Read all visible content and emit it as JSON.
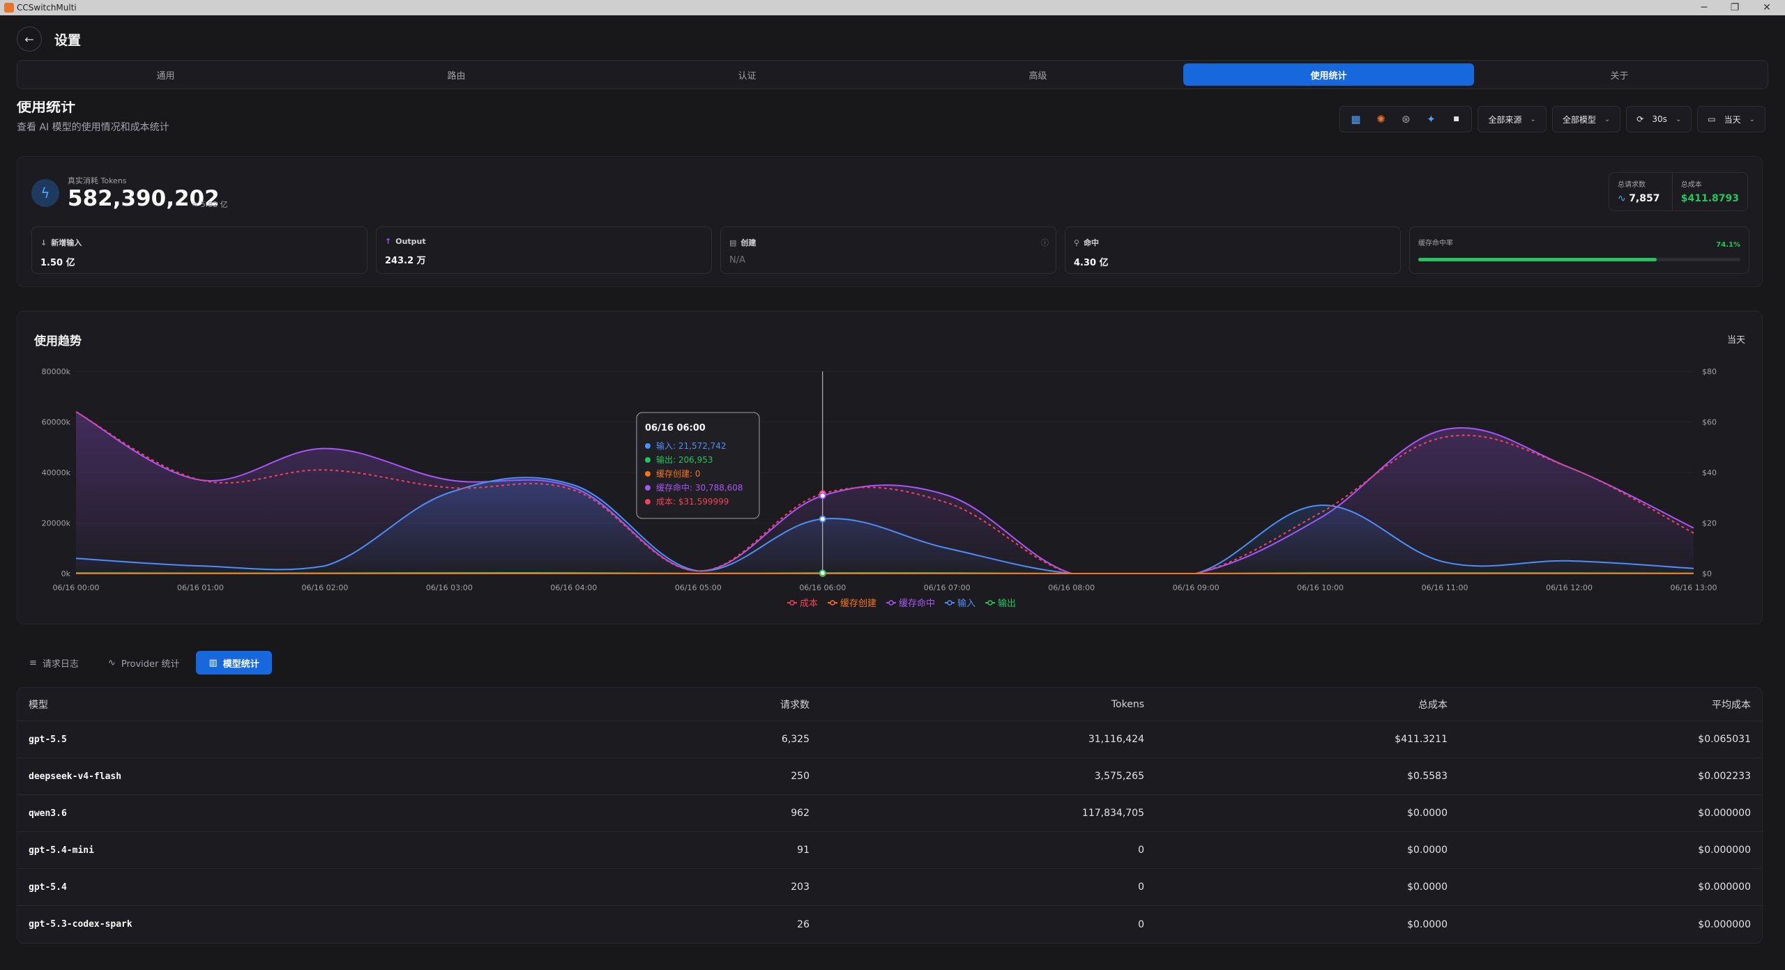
{
  "window": {
    "title": "CCSwitchMulti",
    "minimize": "─",
    "maximize": "❐",
    "close": "✕"
  },
  "header": {
    "back_icon": "←",
    "title": "设置"
  },
  "tabs": [
    {
      "label": "通用"
    },
    {
      "label": "路由"
    },
    {
      "label": "认证"
    },
    {
      "label": "高级"
    },
    {
      "label": "使用统计",
      "active": true
    },
    {
      "label": "关于"
    }
  ],
  "section": {
    "title": "使用统计",
    "subtitle": "查看 AI 模型的使用情况和成本统计"
  },
  "toolbar": {
    "icons": [
      {
        "name": "grid-icon",
        "glyph": "▦",
        "color": "#4da3ff"
      },
      {
        "name": "claude-icon",
        "glyph": "✺",
        "color": "#e8742c"
      },
      {
        "name": "openai-icon",
        "glyph": "⊛",
        "color": "#a1a1aa"
      },
      {
        "name": "gemini-icon",
        "glyph": "✦",
        "color": "#4da3ff"
      },
      {
        "name": "square-icon",
        "glyph": "■",
        "color": "#e4e4e7"
      }
    ],
    "source": "全部来源",
    "model": "全部模型",
    "refresh": "30s",
    "range": "当天"
  },
  "summary": {
    "tokens_label": "真实消耗 Tokens",
    "tokens_value": "582,390,202",
    "tokens_approx": "≈ 5.82 亿",
    "requests_label": "总请求数",
    "requests_value": "7,857",
    "cost_label": "总成本",
    "cost_value": "$411.8793",
    "metrics": [
      {
        "label": "新增输入",
        "value": "1.50 亿",
        "icon": "↓"
      },
      {
        "label": "Output",
        "value": "243.2 万",
        "icon": "↑"
      },
      {
        "label": "创建",
        "value": "N/A",
        "icon": "▤",
        "info": "ⓘ"
      },
      {
        "label": "命中",
        "value": "4.30 亿",
        "icon": "⚲"
      }
    ],
    "cache": {
      "label": "缓存命中率",
      "value": "74.1%",
      "ratio": 0.741
    }
  },
  "trend": {
    "title": "使用趋势",
    "range": "当天",
    "tooltip": {
      "title": "06/16 06:00",
      "rows": [
        {
          "label": "输入: ",
          "value": "21,572,742",
          "color": "#4d8ef7"
        },
        {
          "label": "输出: ",
          "value": "206,953",
          "color": "#22c55e"
        },
        {
          "label": "缓存创建: ",
          "value": "0",
          "color": "#f97316"
        },
        {
          "label": "缓存命中: ",
          "value": "30,788,608",
          "color": "#a855f7"
        },
        {
          "label": "成本: ",
          "value": "$31.599999",
          "color": "#f43f5e"
        }
      ]
    }
  },
  "chart_data": {
    "type": "area",
    "x": [
      "06/16 00:00",
      "06/16 01:00",
      "06/16 02:00",
      "06/16 03:00",
      "06/16 04:00",
      "06/16 05:00",
      "06/16 06:00",
      "06/16 07:00",
      "06/16 08:00",
      "06/16 09:00",
      "06/16 10:00",
      "06/16 11:00",
      "06/16 12:00",
      "06/16 13:00"
    ],
    "y_left": {
      "ticks": [
        "0k",
        "20000k",
        "40000k",
        "60000k",
        "80000k"
      ],
      "range": [
        0,
        80000
      ]
    },
    "y_right": {
      "ticks": [
        "$0",
        "$20",
        "$40",
        "$60",
        "$80"
      ],
      "range": [
        0,
        80
      ]
    },
    "series": [
      {
        "name": "成本",
        "axis": "right",
        "color": "#f43f5e",
        "dashed": true,
        "values": [
          64,
          37,
          41,
          34,
          33,
          1,
          31.6,
          28,
          0,
          0,
          24,
          54,
          42,
          16
        ]
      },
      {
        "name": "缓存创建",
        "axis": "left",
        "color": "#f97316",
        "values": [
          0,
          0,
          0,
          0,
          0,
          0,
          0,
          0,
          0,
          0,
          0,
          0,
          0,
          0
        ]
      },
      {
        "name": "缓存命中",
        "axis": "left",
        "color": "#a855f7",
        "values": [
          64000,
          37000,
          49500,
          37000,
          34000,
          1000,
          30789,
          31000,
          0,
          0,
          22000,
          57000,
          42000,
          18000
        ]
      },
      {
        "name": "输入",
        "axis": "left",
        "color": "#4d8ef7",
        "values": [
          6000,
          3000,
          3000,
          32000,
          35000,
          1000,
          21573,
          10000,
          0,
          0,
          27000,
          4500,
          5000,
          2000
        ]
      },
      {
        "name": "输出",
        "axis": "left",
        "color": "#22c55e",
        "values": [
          200,
          150,
          150,
          250,
          250,
          50,
          207,
          200,
          0,
          0,
          200,
          200,
          200,
          100
        ]
      }
    ]
  },
  "subtabs": [
    {
      "label": "请求日志",
      "icon": "≡"
    },
    {
      "label": "Provider 统计",
      "icon": "∿"
    },
    {
      "label": "模型统计",
      "icon": "▥",
      "active": true
    }
  ],
  "table": {
    "headers": [
      "模型",
      "请求数",
      "Tokens",
      "总成本",
      "平均成本"
    ],
    "rows": [
      [
        "gpt-5.5",
        "6,325",
        "31,116,424",
        "$411.3211",
        "$0.065031"
      ],
      [
        "deepseek-v4-flash",
        "250",
        "3,575,265",
        "$0.5583",
        "$0.002233"
      ],
      [
        "qwen3.6",
        "962",
        "117,834,705",
        "$0.0000",
        "$0.000000"
      ],
      [
        "gpt-5.4-mini",
        "91",
        "0",
        "$0.0000",
        "$0.000000"
      ],
      [
        "gpt-5.4",
        "203",
        "0",
        "$0.0000",
        "$0.000000"
      ],
      [
        "gpt-5.3-codex-spark",
        "26",
        "0",
        "$0.0000",
        "$0.000000"
      ]
    ]
  }
}
